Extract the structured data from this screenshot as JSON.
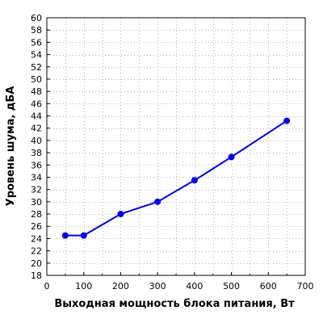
{
  "chart_data": {
    "type": "line",
    "title": "",
    "xlabel": "Выходная мощность блока питания, Вт",
    "ylabel": "Уровень шума, дБА",
    "xlim": [
      0,
      700
    ],
    "ylim": [
      18,
      60
    ],
    "x_ticks": [
      0,
      100,
      200,
      300,
      400,
      500,
      600,
      700
    ],
    "y_ticks": [
      18,
      20,
      22,
      24,
      26,
      28,
      30,
      32,
      34,
      36,
      38,
      40,
      42,
      44,
      46,
      48,
      50,
      52,
      54,
      56,
      58,
      60
    ],
    "grid": true,
    "grid_style": "dotted",
    "x_minor_step": 50,
    "legend": "none",
    "series": [
      {
        "color": "#0000ee",
        "x": [
          50,
          100,
          200,
          300,
          400,
          500,
          650
        ],
        "y": [
          24.5,
          24.5,
          28,
          30,
          33.5,
          37.3,
          43.2
        ]
      }
    ]
  }
}
